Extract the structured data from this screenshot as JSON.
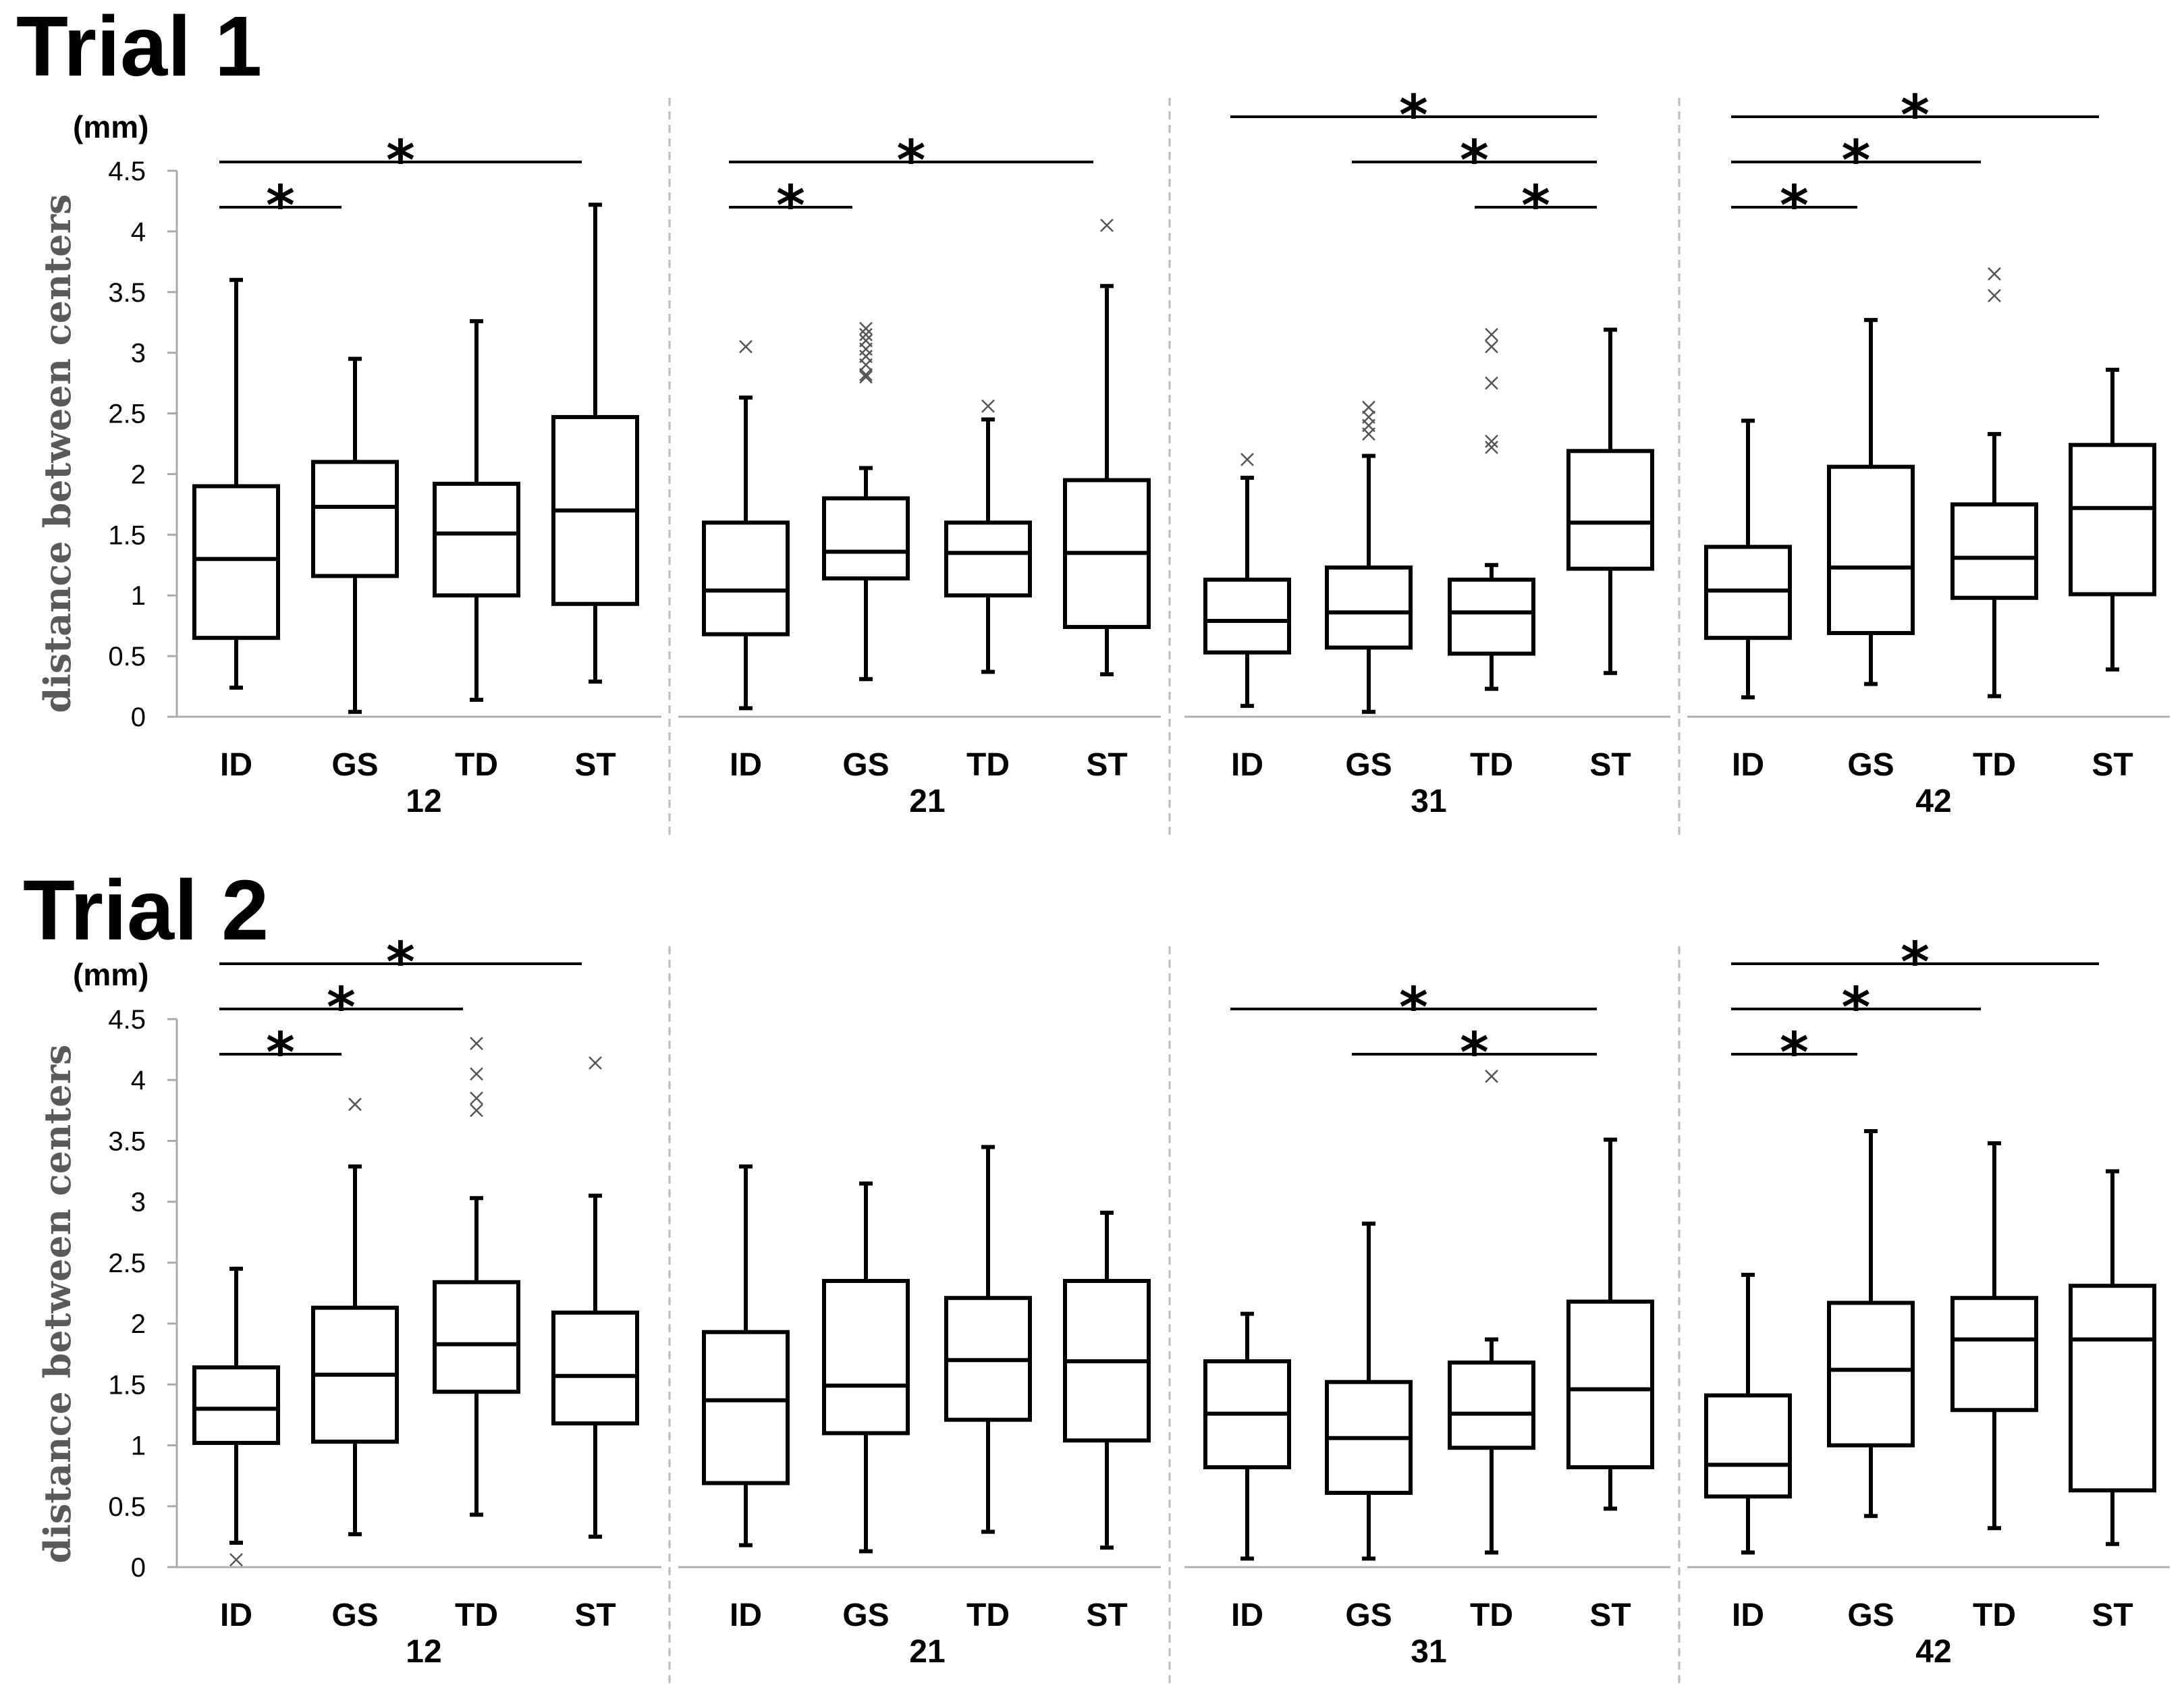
{
  "chart_data": [
    {
      "type": "boxplot",
      "title": "Trial 1",
      "ylabel": "distance between centers",
      "unit": "(mm)",
      "ylim": [
        0,
        4.5
      ],
      "yticks": [
        "0",
        "0.5",
        "1",
        "1.5",
        "2",
        "2.5",
        "3",
        "3.5",
        "4",
        "4.5"
      ],
      "categories": [
        "ID",
        "GS",
        "TD",
        "ST"
      ],
      "groups": [
        {
          "name": "12",
          "boxes": [
            {
              "category": "ID",
              "min": 0.24,
              "q1": 0.65,
              "median": 1.3,
              "q3": 1.9,
              "max": 3.6,
              "outliers": []
            },
            {
              "category": "GS",
              "min": 0.04,
              "q1": 1.16,
              "median": 1.73,
              "q3": 2.1,
              "max": 2.95,
              "outliers": []
            },
            {
              "category": "TD",
              "min": 0.14,
              "q1": 1.0,
              "median": 1.51,
              "q3": 1.92,
              "max": 3.26,
              "outliers": []
            },
            {
              "category": "ST",
              "min": 0.29,
              "q1": 0.93,
              "median": 1.7,
              "q3": 2.47,
              "max": 4.22,
              "outliers": []
            }
          ],
          "significance": [
            {
              "from": "ID",
              "to": "GS",
              "label": "*"
            },
            {
              "from": "ID",
              "to": "ST",
              "label": "*"
            }
          ]
        },
        {
          "name": "21",
          "boxes": [
            {
              "category": "ID",
              "min": 0.07,
              "q1": 0.68,
              "median": 1.04,
              "q3": 1.6,
              "max": 2.63,
              "outliers": [
                3.05
              ]
            },
            {
              "category": "GS",
              "min": 0.31,
              "q1": 1.14,
              "median": 1.36,
              "q3": 1.8,
              "max": 2.05,
              "outliers": [
                2.8,
                2.82,
                2.9,
                2.97,
                3.03,
                3.1,
                3.15,
                3.2
              ]
            },
            {
              "category": "TD",
              "min": 0.37,
              "q1": 1.0,
              "median": 1.35,
              "q3": 1.6,
              "max": 2.45,
              "outliers": [
                2.56
              ]
            },
            {
              "category": "ST",
              "min": 0.35,
              "q1": 0.74,
              "median": 1.35,
              "q3": 1.95,
              "max": 3.55,
              "outliers": [
                4.05
              ]
            }
          ],
          "significance": [
            {
              "from": "ID",
              "to": "GS",
              "label": "*"
            },
            {
              "from": "ID",
              "to": "ST",
              "label": "*"
            }
          ]
        },
        {
          "name": "31",
          "boxes": [
            {
              "category": "ID",
              "min": 0.09,
              "q1": 0.53,
              "median": 0.79,
              "q3": 1.13,
              "max": 1.97,
              "outliers": [
                2.12
              ]
            },
            {
              "category": "GS",
              "min": 0.04,
              "q1": 0.57,
              "median": 0.86,
              "q3": 1.23,
              "max": 2.15,
              "outliers": [
                2.33,
                2.4,
                2.47,
                2.55
              ]
            },
            {
              "category": "TD",
              "min": 0.23,
              "q1": 0.52,
              "median": 0.86,
              "q3": 1.13,
              "max": 1.25,
              "outliers": [
                2.22,
                2.27,
                2.75,
                3.05,
                3.15
              ]
            },
            {
              "category": "ST",
              "min": 0.36,
              "q1": 1.22,
              "median": 1.6,
              "q3": 2.19,
              "max": 3.19,
              "outliers": []
            }
          ],
          "significance": [
            {
              "from": "TD",
              "to": "ST",
              "label": "*"
            },
            {
              "from": "GS",
              "to": "ST",
              "label": "*"
            },
            {
              "from": "ID",
              "to": "ST",
              "label": "*"
            }
          ]
        },
        {
          "name": "42",
          "boxes": [
            {
              "category": "ID",
              "min": 0.16,
              "q1": 0.65,
              "median": 1.04,
              "q3": 1.4,
              "max": 2.44,
              "outliers": []
            },
            {
              "category": "GS",
              "min": 0.27,
              "q1": 0.69,
              "median": 1.23,
              "q3": 2.06,
              "max": 3.27,
              "outliers": []
            },
            {
              "category": "TD",
              "min": 0.17,
              "q1": 0.98,
              "median": 1.31,
              "q3": 1.75,
              "max": 2.33,
              "outliers": [
                3.47,
                3.65
              ]
            },
            {
              "category": "ST",
              "min": 0.39,
              "q1": 1.01,
              "median": 1.72,
              "q3": 2.24,
              "max": 2.86,
              "outliers": []
            }
          ],
          "significance": [
            {
              "from": "ID",
              "to": "GS",
              "label": "*"
            },
            {
              "from": "ID",
              "to": "TD",
              "label": "*"
            },
            {
              "from": "ID",
              "to": "ST",
              "label": "*"
            }
          ]
        }
      ]
    },
    {
      "type": "boxplot",
      "title": "Trial 2",
      "ylabel": "distance between centers",
      "unit": "(mm)",
      "ylim": [
        0,
        4.5
      ],
      "yticks": [
        "0",
        "0.5",
        "1",
        "1.5",
        "2",
        "2.5",
        "3",
        "3.5",
        "4",
        "4.5"
      ],
      "categories": [
        "ID",
        "GS",
        "TD",
        "ST"
      ],
      "groups": [
        {
          "name": "12",
          "boxes": [
            {
              "category": "ID",
              "min": 0.2,
              "q1": 1.02,
              "median": 1.3,
              "q3": 1.64,
              "max": 2.45,
              "outliers": [
                0.06
              ]
            },
            {
              "category": "GS",
              "min": 0.27,
              "q1": 1.03,
              "median": 1.58,
              "q3": 2.13,
              "max": 3.29,
              "outliers": [
                3.8
              ]
            },
            {
              "category": "TD",
              "min": 0.43,
              "q1": 1.44,
              "median": 1.83,
              "q3": 2.34,
              "max": 3.03,
              "outliers": [
                3.75,
                3.85,
                4.05,
                4.3
              ]
            },
            {
              "category": "ST",
              "min": 0.25,
              "q1": 1.18,
              "median": 1.57,
              "q3": 2.09,
              "max": 3.05,
              "outliers": [
                4.14
              ]
            }
          ],
          "significance": [
            {
              "from": "ID",
              "to": "GS",
              "label": "*"
            },
            {
              "from": "ID",
              "to": "TD",
              "label": "*"
            },
            {
              "from": "ID",
              "to": "ST",
              "label": "*"
            }
          ]
        },
        {
          "name": "21",
          "boxes": [
            {
              "category": "ID",
              "min": 0.18,
              "q1": 0.69,
              "median": 1.37,
              "q3": 1.93,
              "max": 3.29,
              "outliers": []
            },
            {
              "category": "GS",
              "min": 0.13,
              "q1": 1.1,
              "median": 1.49,
              "q3": 2.35,
              "max": 3.15,
              "outliers": []
            },
            {
              "category": "TD",
              "min": 0.29,
              "q1": 1.21,
              "median": 1.7,
              "q3": 2.21,
              "max": 3.45,
              "outliers": []
            },
            {
              "category": "ST",
              "min": 0.16,
              "q1": 1.04,
              "median": 1.69,
              "q3": 2.35,
              "max": 2.91,
              "outliers": []
            }
          ],
          "significance": []
        },
        {
          "name": "31",
          "boxes": [
            {
              "category": "ID",
              "min": 0.07,
              "q1": 0.82,
              "median": 1.26,
              "q3": 1.69,
              "max": 2.08,
              "outliers": []
            },
            {
              "category": "GS",
              "min": 0.07,
              "q1": 0.61,
              "median": 1.06,
              "q3": 1.52,
              "max": 2.82,
              "outliers": []
            },
            {
              "category": "TD",
              "min": 0.12,
              "q1": 0.98,
              "median": 1.26,
              "q3": 1.68,
              "max": 1.87,
              "outliers": [
                4.03
              ]
            },
            {
              "category": "ST",
              "min": 0.48,
              "q1": 0.82,
              "median": 1.46,
              "q3": 2.18,
              "max": 3.51,
              "outliers": []
            }
          ],
          "significance": [
            {
              "from": "GS",
              "to": "ST",
              "label": "*"
            },
            {
              "from": "ID",
              "to": "ST",
              "label": "*"
            }
          ]
        },
        {
          "name": "42",
          "boxes": [
            {
              "category": "ID",
              "min": 0.12,
              "q1": 0.58,
              "median": 0.84,
              "q3": 1.41,
              "max": 2.4,
              "outliers": []
            },
            {
              "category": "GS",
              "min": 0.42,
              "q1": 1.0,
              "median": 1.62,
              "q3": 2.17,
              "max": 3.58,
              "outliers": []
            },
            {
              "category": "TD",
              "min": 0.32,
              "q1": 1.29,
              "median": 1.87,
              "q3": 2.21,
              "max": 3.48,
              "outliers": []
            },
            {
              "category": "ST",
              "min": 0.19,
              "q1": 0.63,
              "median": 1.87,
              "q3": 2.31,
              "max": 3.25,
              "outliers": []
            }
          ],
          "significance": [
            {
              "from": "ID",
              "to": "GS",
              "label": "*"
            },
            {
              "from": "ID",
              "to": "TD",
              "label": "*"
            },
            {
              "from": "ID",
              "to": "ST",
              "label": "*"
            }
          ]
        }
      ]
    }
  ]
}
